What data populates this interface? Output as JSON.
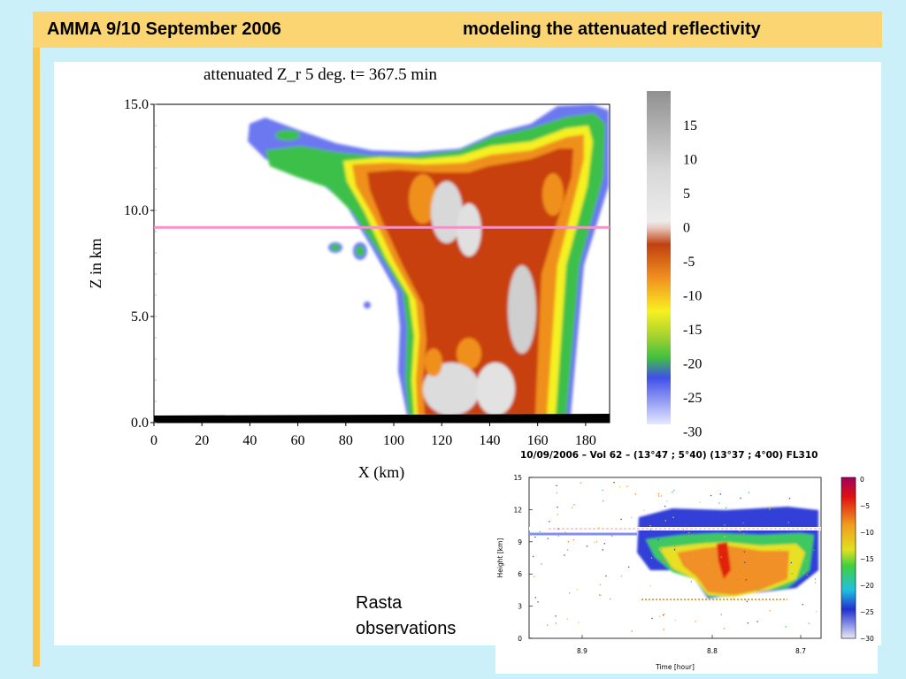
{
  "slide": {
    "title_left": "AMMA 9/10 September 2006",
    "title_right": "modeling the attenuated reflectivity",
    "accent_color": "#fbd572",
    "background_color": "#ccf0fa",
    "observation_label_line1": "Rasta",
    "observation_label_line2": "observations"
  },
  "chart_data": [
    {
      "type": "heatmap",
      "title": "attenuated Z_r         5 deg. t= 367.5 min",
      "xlabel": "X (km)",
      "ylabel": "Z in km",
      "xlim": [
        0,
        190
      ],
      "ylim": [
        0,
        15
      ],
      "x_ticks": [
        "0",
        "20",
        "40",
        "60",
        "80",
        "100",
        "120",
        "140",
        "160",
        "180"
      ],
      "y_ticks": [
        "0.0",
        "5.0",
        "10.0",
        "15.0"
      ],
      "colorbar_ticks": [
        "15",
        "10",
        "5",
        "0",
        "-5",
        "-10",
        "-15",
        "-20",
        "-25",
        "-30"
      ],
      "reference_line_z": 9.2,
      "reference_line_color": "#f590c8",
      "ground_color": "#000000"
    },
    {
      "type": "heatmap",
      "title": "10/09/2006 – Vol 62 – (13°47 ; 5°40) (13°37 ; 4°00) FL310",
      "xlabel": "Time [hour]",
      "ylabel": "Height [km]",
      "ylim": [
        0,
        15
      ],
      "x_ticks": [
        "8.9",
        "8.8",
        "8.7"
      ],
      "y_ticks": [
        "0",
        "3",
        "6",
        "9",
        "12",
        "15"
      ],
      "colorbar_ticks": [
        "0",
        "−5",
        "−10",
        "−15",
        "−20",
        "−25",
        "−30"
      ],
      "flight_level_km": 10.1
    }
  ]
}
